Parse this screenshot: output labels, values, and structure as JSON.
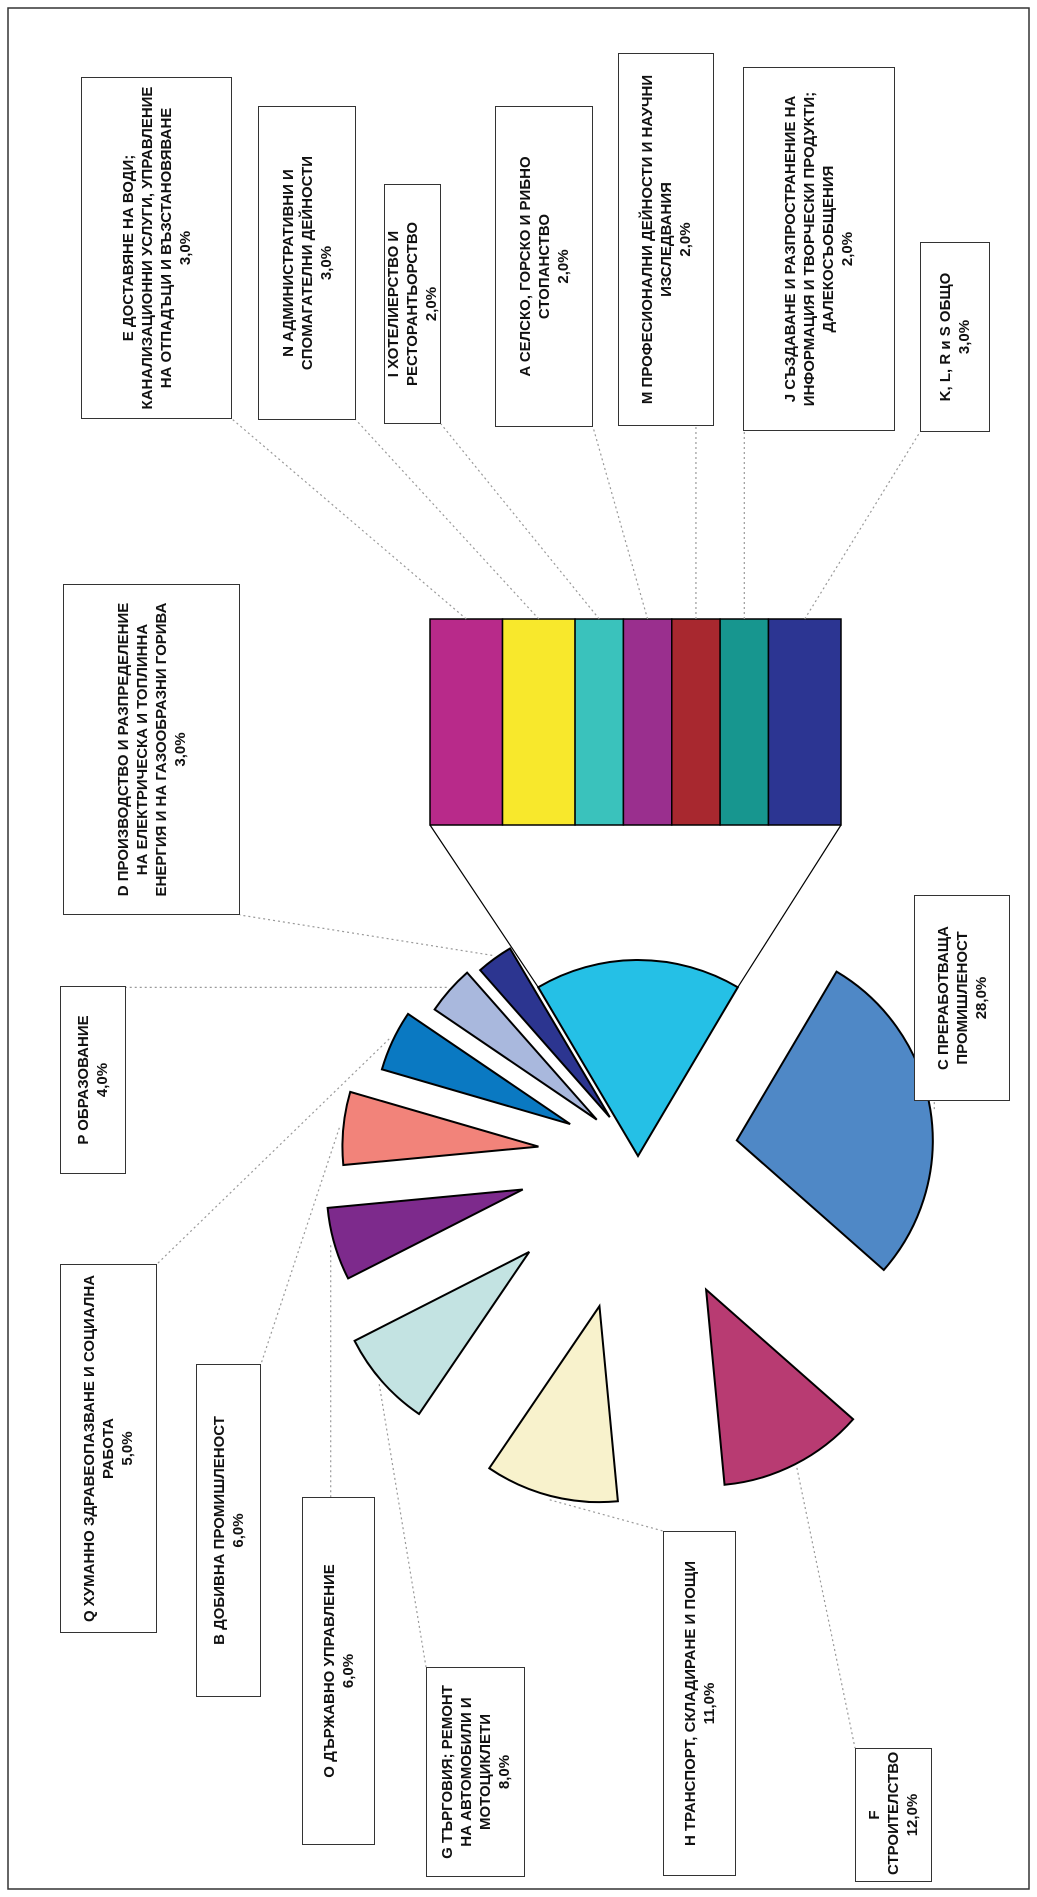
{
  "chart_data": {
    "type": "bar-of-pie",
    "pie": {
      "categories": [
        "C ПРЕРАБОТВАЩА ПРОМИШЛЕНОСТ",
        "F СТРОИТЕЛСТВО",
        "H ТРАНСПОРТ, СКЛАДИРАНЕ И ПОЩИ",
        "G ТЪРГОВИЯ; РЕМОНТ НА АВТОМОБИЛИ И МОТОЦИКЛЕТИ",
        "O ДЪРЖАВНО УПРАВЛЕНИЕ",
        "B ДОБИВНА ПРОМИШЛЕНОСТ",
        "Q ХУМАННО ЗДРАВЕОПАЗВАНЕ И СОЦИАЛНА РАБОТА",
        "P ОБРАЗОВАНИЕ",
        "D ПРОИЗВОДСТВО И РАЗПРЕДЕЛЕНИЕ НА ЕЛЕКТРИЧЕСКА И ТОПЛИННА ЕНЕРГИЯ И НА ГАЗООБРАЗНИ ГОРИВА"
      ],
      "values": [
        28,
        12,
        11,
        8,
        6,
        6,
        5,
        4,
        3
      ],
      "value_labels": [
        "28,0%",
        "12,0%",
        "11,0%",
        "8,0%",
        "6,0%",
        "6,0%",
        "5,0%",
        "4,0%",
        "3,0%"
      ],
      "colors": [
        "#4f88c6",
        "#b83b72",
        "#f8f2cc",
        "#c3e3e2",
        "#7d2a8c",
        "#f2837a",
        "#0a79c2",
        "#a9b8dd",
        "#2c3590"
      ],
      "other_color": "#25c0e6"
    },
    "bar_of_pie": {
      "categories": [
        "E ДОСТАВЯНЕ НА ВОДИ; КАНАЛИЗАЦИОННИ УСЛУГИ, УПРАВЛЕНИЕ НА ОТПАДЪЦИ И ВЪЗСТАНОВЯВАНЕ",
        "N АДМИНИСТРАТИВНИ И СПОМАГАТЕЛНИ ДЕЙНОСТИ",
        "I ХОТЕЛИЕРСТВО И РЕСТОРАНТЬОРСТВО",
        "A СЕЛСКО, ГОРСКО И РИБНО СТОПАНСТВО",
        "M ПРОФЕСИОНАЛНИ ДЕЙНОСТИ И НАУЧНИ ИЗСЛЕДВАНИЯ",
        "J СЪЗДАВАНЕ И РАЗПРОСТРАНЕНИЕ НА ИНФОРМАЦИЯ И ТВОРЧЕСКИ ПРОДУКТИ; ДАЛЕКОСЪОБЩЕНИЯ",
        "K, L, R и S ОБЩО"
      ],
      "values": [
        3,
        3,
        2,
        2,
        2,
        2,
        3
      ],
      "value_labels": [
        "3,0%",
        "3,0%",
        "2,0%",
        "2,0%",
        "2,0%",
        "2,0%",
        "3,0%"
      ],
      "colors": [
        "#b82a8a",
        "#f8e82c",
        "#3ac2bc",
        "#9a2f8e",
        "#a8282f",
        "#17968f",
        "#2c3592"
      ]
    }
  }
}
